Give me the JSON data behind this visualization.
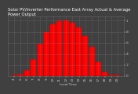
{
  "title": "Solar PV/Inverter Performance East Array Actual & Average Power Output",
  "subtitle": "Local Time",
  "bg_color": "#404040",
  "plot_bg_color": "#404040",
  "grid_color": "#aaaaaa",
  "area_color": "#ff0000",
  "bar_edge_color": "#cc0000",
  "x_hours": [
    4,
    5,
    6,
    7,
    8,
    9,
    10,
    11,
    12,
    13,
    14,
    15,
    16,
    17,
    18,
    19,
    20
  ],
  "y_values": [
    0.005,
    0.02,
    0.1,
    0.3,
    0.58,
    0.8,
    0.93,
    0.99,
    1.0,
    0.97,
    0.88,
    0.72,
    0.52,
    0.25,
    0.07,
    0.01,
    0.002
  ],
  "y_max": 1.0,
  "y_ticks": [
    0.0,
    0.2,
    0.4,
    0.6,
    0.8,
    1.0
  ],
  "y_tick_labels": [
    "0",
    ".2",
    ".4",
    ".6",
    ".8",
    "1"
  ],
  "x_tick_labels": [
    "4",
    "5",
    "6",
    "7",
    "8",
    "9",
    "10",
    "11",
    "12",
    "13",
    "14",
    "15",
    "16",
    "17",
    "18",
    "19",
    "20"
  ],
  "title_color": "#ffffff",
  "tick_color": "#cccccc",
  "title_fontsize": 3.8,
  "tick_fontsize": 3.0,
  "label_fontsize": 3.0
}
